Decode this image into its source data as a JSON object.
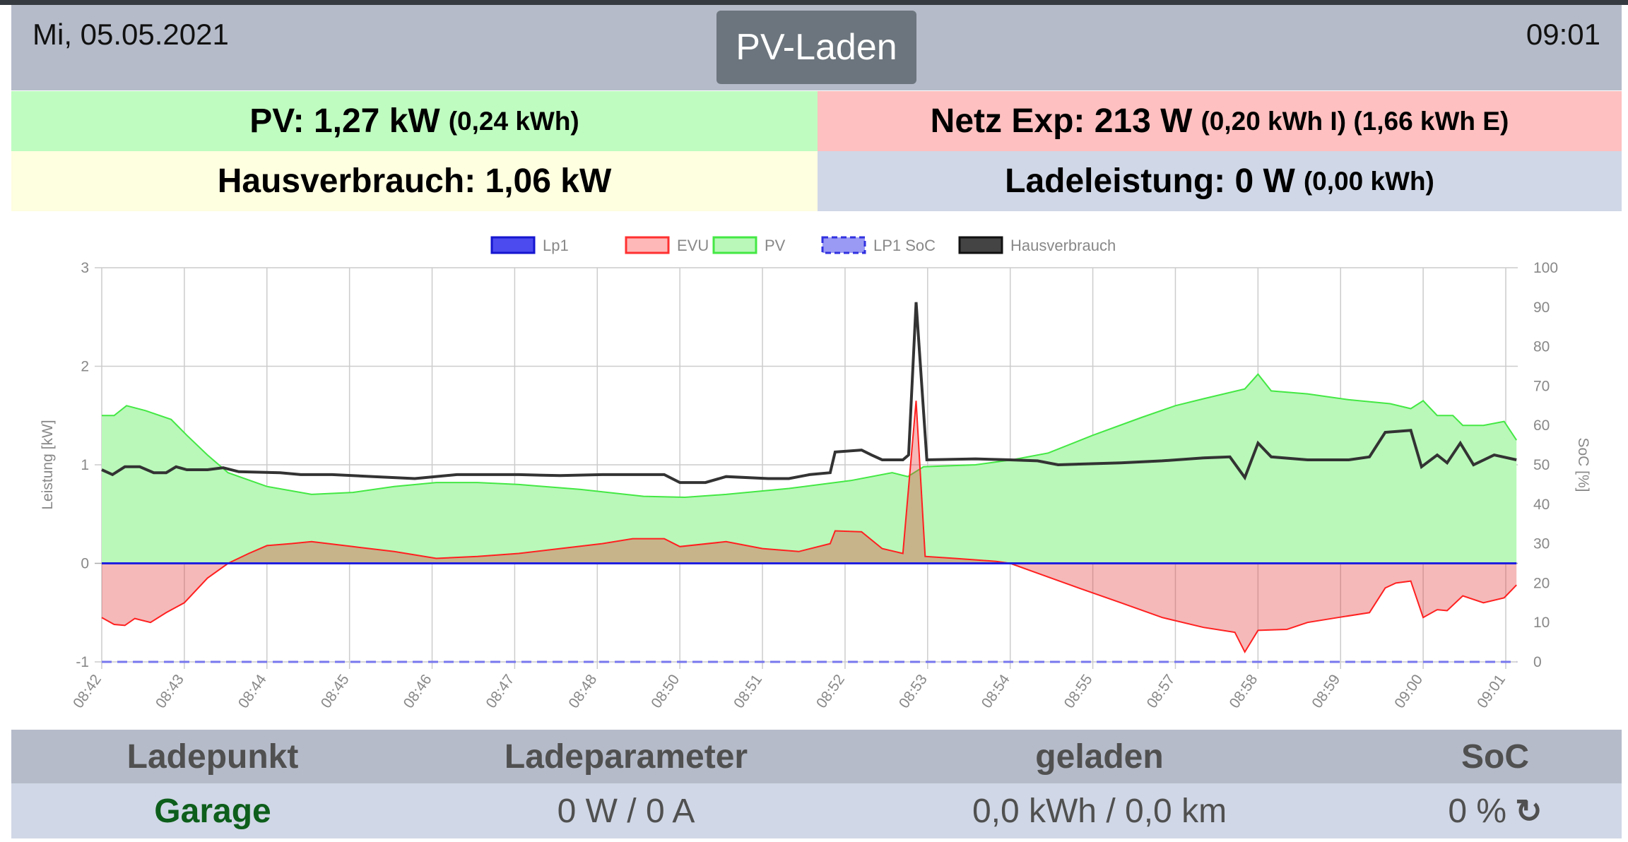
{
  "header": {
    "date": "Mi, 05.05.2021",
    "mode_button": "PV-Laden",
    "time": "09:01"
  },
  "status": {
    "pv": {
      "label": "PV: 1,27 kW",
      "detail": "(0,24 kWh)"
    },
    "grid": {
      "label": "Netz Exp: 213 W",
      "detail": "(0,20 kWh I) (1,66 kWh E)"
    },
    "house": {
      "label": "Hausverbrauch: 1,06 kW"
    },
    "charge": {
      "label": "Ladeleistung: 0 W",
      "detail": "(0,00 kWh)"
    }
  },
  "colors": {
    "pv": "#b9f8b9",
    "pv_line": "#44e844",
    "evu_line": "#ff2020",
    "lp1": "#2020e0",
    "house": "#333333"
  },
  "chart_data": {
    "type": "line",
    "categories": [
      "08:42",
      "08:43",
      "08:44",
      "08:45",
      "08:46",
      "08:47",
      "08:48",
      "08:50",
      "08:51",
      "08:52",
      "08:53",
      "08:54",
      "08:55",
      "08:57",
      "08:58",
      "08:59",
      "09:00",
      "09:01"
    ],
    "ylabel": "Leistung [kW]",
    "y2label": "SoC [%]",
    "ylim": [
      -1,
      3
    ],
    "yticks": [
      -1,
      0,
      1,
      2,
      3
    ],
    "y2lim": [
      0,
      100
    ],
    "y2ticks": [
      0,
      10,
      20,
      30,
      40,
      50,
      60,
      70,
      80,
      90,
      100
    ],
    "legend": [
      "Lp1",
      "EVU",
      "PV",
      "LP1 SoC",
      "Hausverbrauch"
    ],
    "legend_position": "top",
    "series": {
      "PV": [
        [
          0,
          1.5
        ],
        [
          0.15,
          1.5
        ],
        [
          0.3,
          1.6
        ],
        [
          0.53,
          1.55
        ],
        [
          0.84,
          1.46
        ],
        [
          1.03,
          1.3
        ],
        [
          1.28,
          1.1
        ],
        [
          1.53,
          0.92
        ],
        [
          2.0,
          0.78
        ],
        [
          2.54,
          0.7
        ],
        [
          3.04,
          0.72
        ],
        [
          3.54,
          0.78
        ],
        [
          4.05,
          0.82
        ],
        [
          4.55,
          0.82
        ],
        [
          5.05,
          0.8
        ],
        [
          5.8,
          0.75
        ],
        [
          6.56,
          0.68
        ],
        [
          7.06,
          0.67
        ],
        [
          7.56,
          0.7
        ],
        [
          8.32,
          0.76
        ],
        [
          9.07,
          0.84
        ],
        [
          9.57,
          0.92
        ],
        [
          9.76,
          0.88
        ],
        [
          9.95,
          0.98
        ],
        [
          10.58,
          1.0
        ],
        [
          11.02,
          1.05
        ],
        [
          11.46,
          1.12
        ],
        [
          12.0,
          1.3
        ],
        [
          12.59,
          1.48
        ],
        [
          13.0,
          1.6
        ],
        [
          13.34,
          1.67
        ],
        [
          13.84,
          1.77
        ],
        [
          14.0,
          1.92
        ],
        [
          14.16,
          1.75
        ],
        [
          14.6,
          1.72
        ],
        [
          15.1,
          1.66
        ],
        [
          15.6,
          1.62
        ],
        [
          15.85,
          1.57
        ],
        [
          16.0,
          1.65
        ],
        [
          16.17,
          1.5
        ],
        [
          16.36,
          1.5
        ],
        [
          16.48,
          1.4
        ],
        [
          16.73,
          1.4
        ],
        [
          16.98,
          1.44
        ],
        [
          17.13,
          1.25
        ]
      ],
      "EVU": [
        [
          0,
          -0.55
        ],
        [
          0.15,
          -0.62
        ],
        [
          0.28,
          -0.63
        ],
        [
          0.4,
          -0.56
        ],
        [
          0.59,
          -0.6
        ],
        [
          0.78,
          -0.5
        ],
        [
          1.0,
          -0.4
        ],
        [
          1.28,
          -0.15
        ],
        [
          1.53,
          0.0
        ],
        [
          1.78,
          0.1
        ],
        [
          2.0,
          0.18
        ],
        [
          2.29,
          0.2
        ],
        [
          2.54,
          0.22
        ],
        [
          3.04,
          0.17
        ],
        [
          3.54,
          0.12
        ],
        [
          4.05,
          0.05
        ],
        [
          4.55,
          0.07
        ],
        [
          5.05,
          0.1
        ],
        [
          5.55,
          0.15
        ],
        [
          6.06,
          0.2
        ],
        [
          6.43,
          0.25
        ],
        [
          6.81,
          0.25
        ],
        [
          7.0,
          0.17
        ],
        [
          7.56,
          0.22
        ],
        [
          8.0,
          0.15
        ],
        [
          8.44,
          0.12
        ],
        [
          8.82,
          0.2
        ],
        [
          8.88,
          0.33
        ],
        [
          9.2,
          0.32
        ],
        [
          9.45,
          0.15
        ],
        [
          9.7,
          0.1
        ],
        [
          9.86,
          1.65
        ],
        [
          9.97,
          0.07
        ],
        [
          10.33,
          0.05
        ],
        [
          10.83,
          0.02
        ],
        [
          11.0,
          0.0
        ],
        [
          11.33,
          -0.1
        ],
        [
          11.83,
          -0.25
        ],
        [
          12.34,
          -0.4
        ],
        [
          12.84,
          -0.55
        ],
        [
          13.34,
          -0.65
        ],
        [
          13.72,
          -0.7
        ],
        [
          13.84,
          -0.9
        ],
        [
          14.0,
          -0.68
        ],
        [
          14.35,
          -0.67
        ],
        [
          14.6,
          -0.6
        ],
        [
          14.97,
          -0.55
        ],
        [
          15.35,
          -0.5
        ],
        [
          15.54,
          -0.25
        ],
        [
          15.67,
          -0.2
        ],
        [
          15.85,
          -0.18
        ],
        [
          16.0,
          -0.55
        ],
        [
          16.17,
          -0.47
        ],
        [
          16.29,
          -0.48
        ],
        [
          16.48,
          -0.33
        ],
        [
          16.73,
          -0.4
        ],
        [
          16.98,
          -0.35
        ],
        [
          17.13,
          -0.22
        ]
      ],
      "Hausverbrauch": [
        [
          0,
          0.95
        ],
        [
          0.13,
          0.9
        ],
        [
          0.28,
          0.98
        ],
        [
          0.46,
          0.98
        ],
        [
          0.63,
          0.92
        ],
        [
          0.78,
          0.92
        ],
        [
          0.9,
          0.98
        ],
        [
          1.03,
          0.95
        ],
        [
          1.28,
          0.95
        ],
        [
          1.47,
          0.97
        ],
        [
          1.66,
          0.93
        ],
        [
          2.16,
          0.92
        ],
        [
          2.41,
          0.9
        ],
        [
          2.79,
          0.9
        ],
        [
          3.29,
          0.88
        ],
        [
          3.79,
          0.86
        ],
        [
          4.3,
          0.9
        ],
        [
          5.05,
          0.9
        ],
        [
          5.55,
          0.89
        ],
        [
          6.06,
          0.9
        ],
        [
          6.56,
          0.9
        ],
        [
          6.81,
          0.9
        ],
        [
          7.0,
          0.82
        ],
        [
          7.31,
          0.82
        ],
        [
          7.56,
          0.88
        ],
        [
          8.07,
          0.86
        ],
        [
          8.32,
          0.86
        ],
        [
          8.57,
          0.9
        ],
        [
          8.82,
          0.92
        ],
        [
          8.88,
          1.13
        ],
        [
          9.2,
          1.15
        ],
        [
          9.32,
          1.1
        ],
        [
          9.45,
          1.05
        ],
        [
          9.7,
          1.05
        ],
        [
          9.77,
          1.1
        ],
        [
          9.86,
          2.65
        ],
        [
          9.99,
          1.05
        ],
        [
          10.58,
          1.06
        ],
        [
          11.0,
          1.05
        ],
        [
          11.33,
          1.04
        ],
        [
          11.58,
          1.0
        ],
        [
          12.34,
          1.02
        ],
        [
          12.84,
          1.04
        ],
        [
          13.34,
          1.07
        ],
        [
          13.66,
          1.08
        ],
        [
          13.84,
          0.87
        ],
        [
          14.0,
          1.22
        ],
        [
          14.16,
          1.08
        ],
        [
          14.6,
          1.05
        ],
        [
          15.1,
          1.05
        ],
        [
          15.35,
          1.08
        ],
        [
          15.54,
          1.33
        ],
        [
          15.85,
          1.35
        ],
        [
          15.98,
          0.98
        ],
        [
          16.17,
          1.1
        ],
        [
          16.29,
          1.02
        ],
        [
          16.45,
          1.22
        ],
        [
          16.61,
          1.0
        ],
        [
          16.86,
          1.1
        ],
        [
          17.13,
          1.05
        ]
      ],
      "Lp1": [
        [
          0,
          0
        ],
        [
          17.13,
          0
        ]
      ],
      "LP1 SoC": [
        [
          0,
          0
        ],
        [
          17.13,
          0
        ]
      ]
    }
  },
  "table": {
    "headers": [
      "Ladepunkt",
      "Ladeparameter",
      "geladen",
      "SoC"
    ],
    "row": {
      "name": "Garage",
      "params": "0 W / 0 A",
      "charged": "0,0 kWh / 0,0 km",
      "soc": "0 %",
      "refresh_icon": "↻"
    }
  }
}
